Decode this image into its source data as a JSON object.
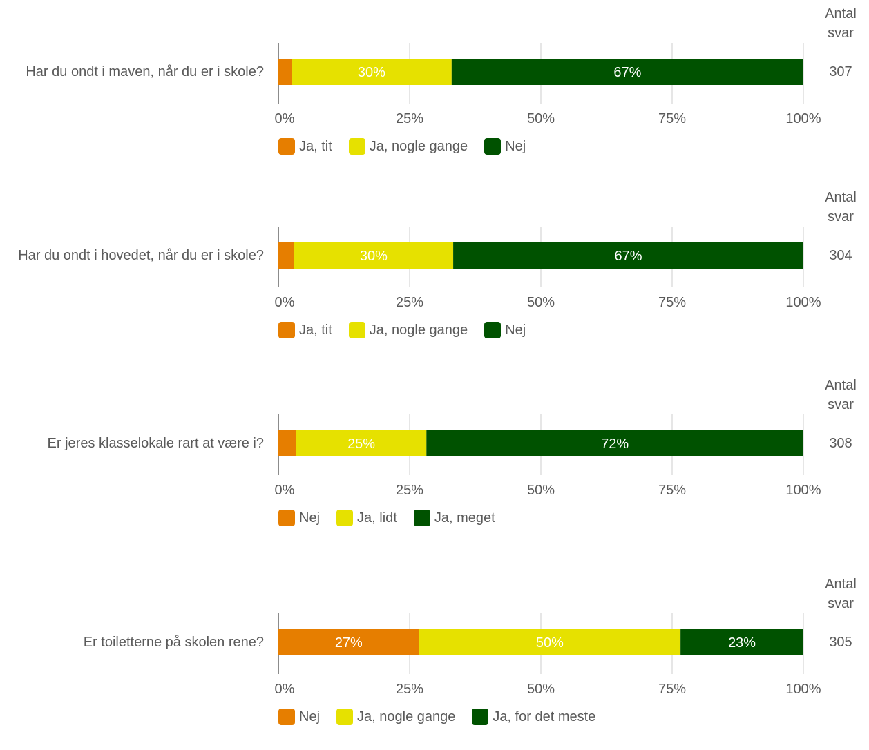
{
  "count_header": "Antal svar",
  "x_ticks": [
    "0%",
    "25%",
    "50%",
    "75%",
    "100%"
  ],
  "chart_data": [
    {
      "type": "bar",
      "question": "Har du ondt i maven, når du er i skole?",
      "count": "307",
      "xlim": [
        0,
        100
      ],
      "series": [
        {
          "name": "Ja, tit",
          "value": 2.5,
          "label": "",
          "color": "#e67e00"
        },
        {
          "name": "Ja, nogle gange",
          "value": 30.5,
          "label": "30%",
          "color": "#e6e100"
        },
        {
          "name": "Nej",
          "value": 67,
          "label": "67%",
          "color": "#005200"
        }
      ]
    },
    {
      "type": "bar",
      "question": "Har du ondt i hovedet, når du er i skole?",
      "count": "304",
      "xlim": [
        0,
        100
      ],
      "series": [
        {
          "name": "Ja, tit",
          "value": 3,
          "label": "",
          "color": "#e67e00"
        },
        {
          "name": "Ja, nogle gange",
          "value": 30.3,
          "label": "30%",
          "color": "#e6e100"
        },
        {
          "name": "Nej",
          "value": 66.7,
          "label": "67%",
          "color": "#005200"
        }
      ]
    },
    {
      "type": "bar",
      "question": "Er jeres klasselokale rart at være i?",
      "count": "308",
      "xlim": [
        0,
        100
      ],
      "series": [
        {
          "name": "Nej",
          "value": 3.4,
          "label": "",
          "color": "#e67e00"
        },
        {
          "name": "Ja, lidt",
          "value": 24.8,
          "label": "25%",
          "color": "#e6e100"
        },
        {
          "name": "Ja, meget",
          "value": 71.8,
          "label": "72%",
          "color": "#005200"
        }
      ]
    },
    {
      "type": "bar",
      "question": "Er toiletterne på skolen rene?",
      "count": "305",
      "xlim": [
        0,
        100
      ],
      "series": [
        {
          "name": "Nej",
          "value": 26.8,
          "label": "27%",
          "color": "#e67e00"
        },
        {
          "name": "Ja, nogle gange",
          "value": 49.8,
          "label": "50%",
          "color": "#e6e100"
        },
        {
          "name": "Ja, for det meste",
          "value": 23.4,
          "label": "23%",
          "color": "#005200"
        }
      ]
    }
  ]
}
